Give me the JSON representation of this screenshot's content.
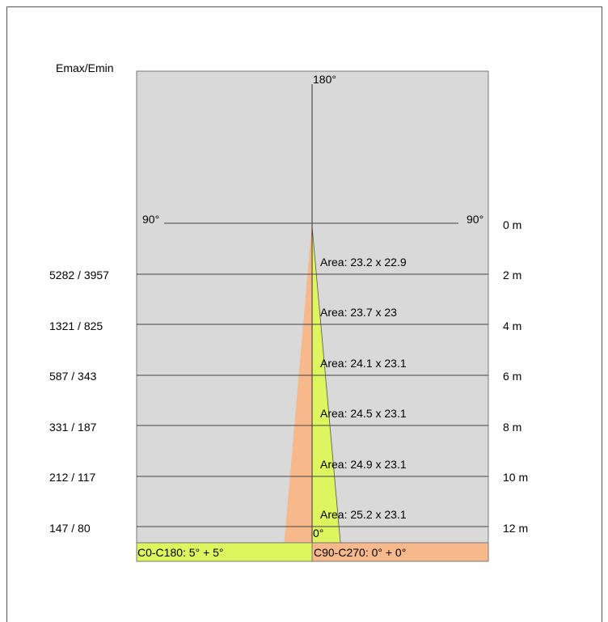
{
  "header_label": "Emax/Emin",
  "angle_top": "180°",
  "angle_left": "90°",
  "angle_right": "90°",
  "angle_bottom": "0°",
  "distances": [
    "0 m",
    "2 m",
    "4 m",
    "6 m",
    "8 m",
    "10 m",
    "12 m"
  ],
  "rows": [
    {
      "emax_emin": "5282 / 3957",
      "area": "Area: 23.2  x  22.9"
    },
    {
      "emax_emin": "1321 / 825",
      "area": "Area: 23.7  x  23"
    },
    {
      "emax_emin": "587 / 343",
      "area": "Area: 24.1  x  23.1"
    },
    {
      "emax_emin": "331 / 187",
      "area": "Area: 24.5  x  23.1"
    },
    {
      "emax_emin": "212 / 117",
      "area": "Area: 24.9  x  23.1"
    },
    {
      "emax_emin": "147 / 80",
      "area": "Area: 25.2  x  23.1"
    }
  ],
  "legend": {
    "c0_c180": "C0-C180: 5° + 5°",
    "c90_c270": "C90-C270: 0° + 0°"
  },
  "colors": {
    "background_panel": "#d9d9d9",
    "beam_c0_c180": "#ddf55f",
    "beam_c90_c270": "#f7b98c"
  }
}
